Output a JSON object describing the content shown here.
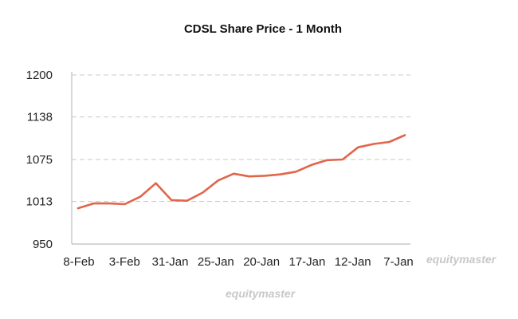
{
  "chart_data": {
    "type": "line",
    "title": "CDSL Share Price - 1 Month",
    "xlabel": "",
    "ylabel": "",
    "x_tick_labels": [
      "8-Feb",
      "3-Feb",
      "31-Jan",
      "25-Jan",
      "20-Jan",
      "17-Jan",
      "12-Jan",
      "7-Jan"
    ],
    "y_tick_labels": [
      "950",
      "1013",
      "1075",
      "1138",
      "1200"
    ],
    "ylim": [
      950,
      1200
    ],
    "grid": "horizontal dashed",
    "legend": "none",
    "series": [
      {
        "values": [
          1003,
          1010,
          1010,
          1009,
          1020,
          1040,
          1015,
          1014,
          1026,
          1044,
          1054,
          1050,
          1051,
          1053,
          1057,
          1067,
          1074,
          1075,
          1093,
          1098,
          1101,
          1111
        ]
      }
    ],
    "colors": {
      "line": "#e0664b",
      "grid": "#c8c8c8",
      "axis": "#bdbdbd"
    }
  },
  "watermarks": [
    "equitymaster",
    "equitymaster"
  ]
}
